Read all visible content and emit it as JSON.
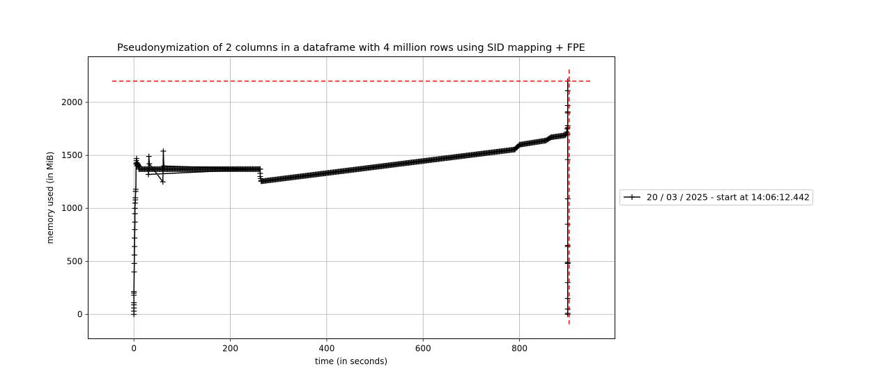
{
  "chart_data": {
    "type": "line",
    "title": "Pseudonymization of 2 columns in a dataframe with 4 million rows using SID mapping + FPE",
    "xlabel": "time (in seconds)",
    "ylabel": "memory used (in MiB)",
    "xlim": [
      -95,
      998
    ],
    "ylim": [
      -230,
      2430
    ],
    "xticks": [
      0,
      200,
      400,
      600,
      800
    ],
    "yticks": [
      0,
      500,
      1000,
      1500,
      2000
    ],
    "grid": true,
    "legend_position": "center-right, outside axes",
    "series": [
      {
        "name": "20 / 03 / 2025 - start at 14:06:12.442",
        "color": "#000000",
        "marker": "+",
        "segments": [
          {
            "kind": "points",
            "x": [
              0,
              0,
              0,
              0,
              0,
              0,
              0,
              0,
              0.5,
              0.8,
              1,
              1.2,
              1.5,
              1.8,
              2,
              2,
              2.2,
              2.5,
              3,
              3,
              3.5,
              4,
              4.5,
              5,
              5.5,
              6,
              6.5,
              7,
              7.5,
              8,
              8.5,
              9,
              9.5,
              10
            ],
            "y": [
              0,
              30,
              60,
              90,
              110,
              180,
              200,
              215,
              400,
              480,
              560,
              640,
              720,
              800,
              870,
              950,
              1000,
              1050,
              1080,
              1100,
              1160,
              1180,
              1420,
              1450,
              1470,
              1430,
              1400,
              1410,
              1420,
              1415,
              1410,
              1405,
              1400,
              1395
            ]
          },
          {
            "kind": "plateau",
            "x_start": 10,
            "x_end": 262,
            "y": 1370,
            "step": 2
          },
          {
            "kind": "spikes",
            "x": [
              30,
              31,
              32,
              60,
              61,
              62
            ],
            "y": [
              1320,
              1490,
              1420,
              1250,
              1540,
              1400
            ]
          },
          {
            "kind": "points",
            "x": [
              262,
              262,
              262,
              263,
              264
            ],
            "y": [
              1370,
              1330,
              1300,
              1280,
              1260
            ]
          },
          {
            "kind": "ramp",
            "x_start": 264,
            "x_end": 790,
            "y_start": 1255,
            "y_end": 1555,
            "step": 2
          },
          {
            "kind": "ramp",
            "x_start": 790,
            "x_end": 800,
            "y_start": 1555,
            "y_end": 1600,
            "step": 2
          },
          {
            "kind": "ramp",
            "x_start": 800,
            "x_end": 855,
            "y_start": 1600,
            "y_end": 1640,
            "step": 2
          },
          {
            "kind": "ramp",
            "x_start": 855,
            "x_end": 865,
            "y_start": 1640,
            "y_end": 1670,
            "step": 2
          },
          {
            "kind": "ramp",
            "x_start": 865,
            "x_end": 896,
            "y_start": 1670,
            "y_end": 1690,
            "step": 2
          },
          {
            "kind": "points",
            "x": [
              897,
              898,
              899,
              900,
              900,
              900,
              900,
              900,
              900,
              900,
              900,
              900,
              900,
              900,
              900,
              900,
              900,
              900,
              900,
              900,
              900,
              900,
              900
            ],
            "y": [
              1700,
              1720,
              1750,
              1780,
              1900,
              1910,
              1970,
              2110,
              2200,
              1760,
              1700,
              1460,
              1090,
              850,
              650,
              640,
              490,
              480,
              300,
              150,
              50,
              10,
              0
            ]
          }
        ]
      }
    ],
    "reference_lines": [
      {
        "orientation": "horizontal",
        "y": 2200,
        "x_from": -45,
        "x_to": 950,
        "color": "#ff0000",
        "style": "dashed"
      },
      {
        "orientation": "vertical",
        "x": 903,
        "y_from": -100,
        "y_to": 2310,
        "color": "#ff0000",
        "style": "dashed"
      }
    ]
  }
}
